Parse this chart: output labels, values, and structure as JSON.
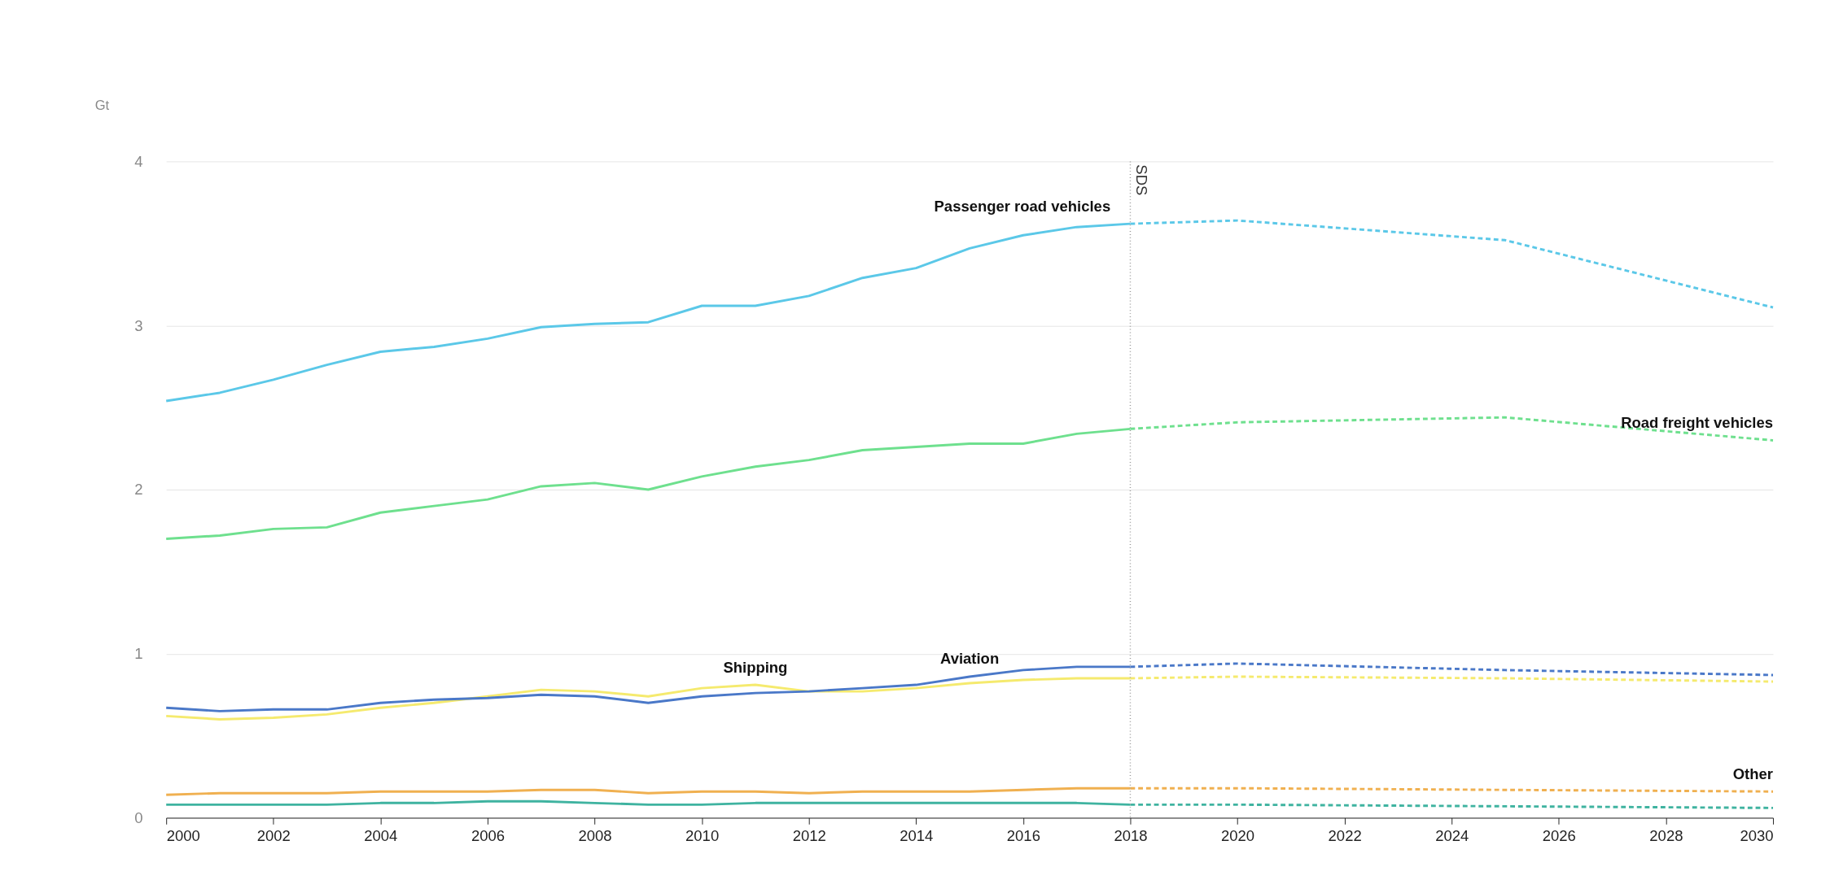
{
  "chart_data": {
    "type": "line",
    "ylabel": "Gt",
    "xlim": [
      2000,
      2030
    ],
    "xticks": [
      2000,
      2002,
      2004,
      2006,
      2008,
      2010,
      2012,
      2014,
      2016,
      2018,
      2020,
      2022,
      2024,
      2026,
      2028,
      2030
    ],
    "ylim": [
      0,
      4
    ],
    "yticks": [
      0,
      1,
      2,
      3,
      4
    ],
    "grid": "y",
    "series": [
      {
        "name": "Passenger road vehicles",
        "color": "#5bc8e8",
        "line_style": "solid",
        "x": [
          2000,
          2001,
          2002,
          2003,
          2004,
          2005,
          2006,
          2007,
          2008,
          2009,
          2010,
          2011,
          2012,
          2013,
          2014,
          2015,
          2016,
          2017,
          2018
        ],
        "values": [
          2.54,
          2.59,
          2.67,
          2.76,
          2.84,
          2.87,
          2.92,
          2.99,
          3.01,
          3.02,
          3.12,
          3.12,
          3.18,
          3.29,
          3.35,
          3.47,
          3.55,
          3.6,
          3.62
        ]
      },
      {
        "color": "#5bc8e8",
        "line_style": "dashed",
        "x": [
          2018,
          2020,
          2025,
          2030
        ],
        "values": [
          3.62,
          3.64,
          3.52,
          3.11
        ]
      },
      {
        "color": "#6ee08e",
        "line_style": "solid",
        "x": [
          2000,
          2001,
          2002,
          2003,
          2004,
          2005,
          2006,
          2007,
          2008,
          2009,
          2010,
          2011,
          2012,
          2013,
          2014,
          2015,
          2016,
          2017,
          2018
        ],
        "values": [
          1.7,
          1.72,
          1.76,
          1.77,
          1.86,
          1.9,
          1.94,
          2.02,
          2.04,
          2.0,
          2.08,
          2.14,
          2.18,
          2.24,
          2.26,
          2.28,
          2.28,
          2.34,
          2.37
        ]
      },
      {
        "name": "Road freight vehicles",
        "color": "#6ee08e",
        "line_style": "dashed",
        "x": [
          2018,
          2020,
          2025,
          2030
        ],
        "values": [
          2.37,
          2.41,
          2.44,
          2.3
        ]
      },
      {
        "name": "Shipping",
        "color": "#f5ea6e",
        "line_style": "solid",
        "x": [
          2000,
          2001,
          2002,
          2003,
          2004,
          2005,
          2006,
          2007,
          2008,
          2009,
          2010,
          2011,
          2012,
          2013,
          2014,
          2015,
          2016,
          2017,
          2018
        ],
        "values": [
          0.62,
          0.6,
          0.61,
          0.63,
          0.67,
          0.7,
          0.74,
          0.78,
          0.77,
          0.74,
          0.79,
          0.81,
          0.77,
          0.77,
          0.79,
          0.82,
          0.84,
          0.85,
          0.85
        ]
      },
      {
        "color": "#f5ea6e",
        "line_style": "dashed",
        "x": [
          2018,
          2020,
          2025,
          2030
        ],
        "values": [
          0.85,
          0.86,
          0.85,
          0.83
        ]
      },
      {
        "name": "Aviation",
        "color": "#4a78c8",
        "line_style": "solid",
        "x": [
          2000,
          2001,
          2002,
          2003,
          2004,
          2005,
          2006,
          2007,
          2008,
          2009,
          2010,
          2011,
          2012,
          2013,
          2014,
          2015,
          2016,
          2017,
          2018
        ],
        "values": [
          0.67,
          0.65,
          0.66,
          0.66,
          0.7,
          0.72,
          0.73,
          0.75,
          0.74,
          0.7,
          0.74,
          0.76,
          0.77,
          0.79,
          0.81,
          0.86,
          0.9,
          0.92,
          0.92
        ]
      },
      {
        "color": "#4a78c8",
        "line_style": "dashed",
        "x": [
          2018,
          2020,
          2025,
          2030
        ],
        "values": [
          0.92,
          0.94,
          0.9,
          0.87
        ]
      },
      {
        "color": "#f0b050",
        "line_style": "solid",
        "x": [
          2000,
          2001,
          2002,
          2003,
          2004,
          2005,
          2006,
          2007,
          2008,
          2009,
          2010,
          2011,
          2012,
          2013,
          2014,
          2015,
          2016,
          2017,
          2018
        ],
        "values": [
          0.14,
          0.15,
          0.15,
          0.15,
          0.16,
          0.16,
          0.16,
          0.17,
          0.17,
          0.15,
          0.16,
          0.16,
          0.15,
          0.16,
          0.16,
          0.16,
          0.17,
          0.18,
          0.18
        ]
      },
      {
        "name": "Other",
        "color": "#f0b050",
        "line_style": "dashed",
        "x": [
          2018,
          2020,
          2025,
          2030
        ],
        "values": [
          0.18,
          0.18,
          0.17,
          0.16
        ]
      },
      {
        "color": "#3fb3a0",
        "line_style": "solid",
        "x": [
          2000,
          2001,
          2002,
          2003,
          2004,
          2005,
          2006,
          2007,
          2008,
          2009,
          2010,
          2011,
          2012,
          2013,
          2014,
          2015,
          2016,
          2017,
          2018
        ],
        "values": [
          0.08,
          0.08,
          0.08,
          0.08,
          0.09,
          0.09,
          0.1,
          0.1,
          0.09,
          0.08,
          0.08,
          0.09,
          0.09,
          0.09,
          0.09,
          0.09,
          0.09,
          0.09,
          0.08
        ]
      },
      {
        "color": "#3fb3a0",
        "line_style": "dashed",
        "x": [
          2018,
          2020,
          2025,
          2030
        ],
        "values": [
          0.08,
          0.08,
          0.07,
          0.06
        ]
      }
    ],
    "ref_lines": [
      {
        "axis": "x",
        "value": 2018,
        "label": "SDS",
        "color": "#999999",
        "line_style": "dotted"
      }
    ]
  }
}
